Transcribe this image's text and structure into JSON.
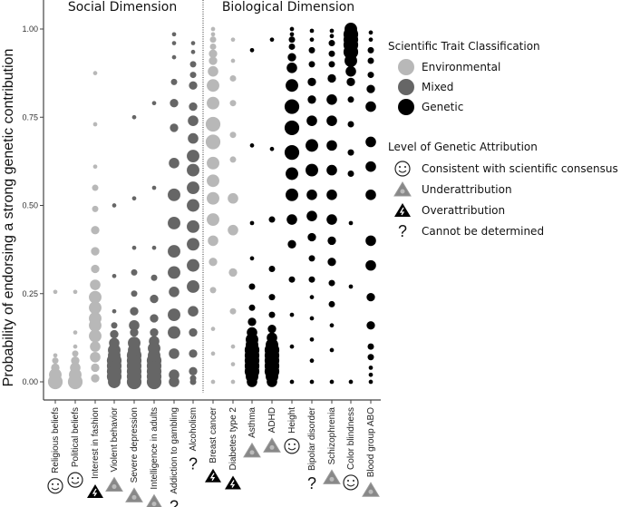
{
  "chart_data": {
    "type": "scatter",
    "subtype": "dot-size plot",
    "ylabel": "Probability of endorsing a strong genetic contribution",
    "ylim": [
      0,
      1
    ],
    "yticks": [
      "0.00",
      "0.25",
      "0.50",
      "0.75",
      "1.00"
    ],
    "yticks_values": [
      0,
      0.25,
      0.5,
      0.75,
      1
    ],
    "dimensions": [
      {
        "label": "Social Dimension",
        "traits": [
          0,
          1,
          2,
          3,
          4,
          5,
          6,
          7
        ]
      },
      {
        "label": "Biological Dimension",
        "traits": [
          8,
          9,
          10,
          11,
          12,
          13,
          14,
          15,
          16
        ]
      }
    ],
    "class_colors": {
      "Environmental": "#b8b8b8",
      "Mixed": "#666666",
      "Genetic": "#000000"
    },
    "legend": {
      "classification_title": "Scientific Trait Classification",
      "classes": [
        "Environmental",
        "Mixed",
        "Genetic"
      ],
      "attribution_title": "Level of Genetic Attribution",
      "attributions": [
        {
          "key": "consensus",
          "label": "Consistent with scientific consensus"
        },
        {
          "key": "under",
          "label": "Underattribution"
        },
        {
          "key": "over",
          "label": "Overattribution"
        },
        {
          "key": "unknown",
          "label": "Cannot be determined"
        }
      ],
      "placement": "right"
    },
    "traits": [
      {
        "name": "Religious beliefs",
        "class": "Environmental",
        "attribution": "consensus",
        "points": [
          [
            0,
            6
          ],
          [
            0.02,
            5
          ],
          [
            0.04,
            3
          ],
          [
            0.06,
            2
          ],
          [
            0.075,
            1
          ],
          [
            0.255,
            1
          ]
        ]
      },
      {
        "name": "Political beliefs",
        "class": "Environmental",
        "attribution": "consensus",
        "points": [
          [
            0,
            6
          ],
          [
            0.02,
            5
          ],
          [
            0.04,
            4
          ],
          [
            0.06,
            3
          ],
          [
            0.08,
            2
          ],
          [
            0.1,
            1
          ],
          [
            0.14,
            1
          ],
          [
            0.255,
            1
          ]
        ]
      },
      {
        "name": "Interest in fashion",
        "class": "Environmental",
        "attribution": "over",
        "points": [
          [
            0.01,
            3
          ],
          [
            0.04,
            3
          ],
          [
            0.07,
            4
          ],
          [
            0.1,
            4
          ],
          [
            0.13,
            5
          ],
          [
            0.16,
            5
          ],
          [
            0.18,
            5
          ],
          [
            0.21,
            5
          ],
          [
            0.24,
            5
          ],
          [
            0.275,
            4
          ],
          [
            0.32,
            3
          ],
          [
            0.37,
            3
          ],
          [
            0.43,
            3
          ],
          [
            0.49,
            2
          ],
          [
            0.55,
            2
          ],
          [
            0.61,
            1
          ],
          [
            0.73,
            1
          ],
          [
            0.875,
            1
          ]
        ]
      },
      {
        "name": "Violent behavior",
        "class": "Mixed",
        "attribution": "under",
        "points": [
          [
            0,
            5
          ],
          [
            0.015,
            6
          ],
          [
            0.03,
            6
          ],
          [
            0.045,
            6
          ],
          [
            0.06,
            6
          ],
          [
            0.075,
            5
          ],
          [
            0.09,
            5
          ],
          [
            0.11,
            4
          ],
          [
            0.135,
            3
          ],
          [
            0.16,
            2
          ],
          [
            0.2,
            1
          ],
          [
            0.3,
            1
          ],
          [
            0.5,
            1
          ]
        ]
      },
      {
        "name": "Severe depression",
        "class": "Mixed",
        "attribution": "under",
        "points": [
          [
            0,
            6
          ],
          [
            0.015,
            6
          ],
          [
            0.03,
            6
          ],
          [
            0.045,
            6
          ],
          [
            0.06,
            6
          ],
          [
            0.075,
            6
          ],
          [
            0.09,
            5
          ],
          [
            0.11,
            5
          ],
          [
            0.14,
            3
          ],
          [
            0.16,
            4
          ],
          [
            0.2,
            3
          ],
          [
            0.25,
            2
          ],
          [
            0.31,
            2
          ],
          [
            0.38,
            1
          ],
          [
            0.52,
            1
          ],
          [
            0.75,
            1
          ]
        ]
      },
      {
        "name": "Intelligence in adults",
        "class": "Mixed",
        "attribution": "under",
        "points": [
          [
            0,
            6
          ],
          [
            0.015,
            6
          ],
          [
            0.03,
            6
          ],
          [
            0.045,
            6
          ],
          [
            0.06,
            6
          ],
          [
            0.075,
            5
          ],
          [
            0.095,
            5
          ],
          [
            0.115,
            4
          ],
          [
            0.14,
            3
          ],
          [
            0.18,
            3
          ],
          [
            0.235,
            3
          ],
          [
            0.295,
            2
          ],
          [
            0.38,
            1
          ],
          [
            0.55,
            1
          ],
          [
            0.79,
            1
          ]
        ]
      },
      {
        "name": "Addiction to gambling",
        "class": "Mixed",
        "attribution": "unknown",
        "points": [
          [
            0,
            4
          ],
          [
            0.02,
            4
          ],
          [
            0.08,
            4
          ],
          [
            0.14,
            5
          ],
          [
            0.19,
            5
          ],
          [
            0.255,
            4
          ],
          [
            0.31,
            5
          ],
          [
            0.37,
            5
          ],
          [
            0.45,
            5
          ],
          [
            0.53,
            5
          ],
          [
            0.62,
            4
          ],
          [
            0.72,
            3
          ],
          [
            0.79,
            3
          ],
          [
            0.85,
            2
          ],
          [
            0.92,
            1
          ],
          [
            0.96,
            1
          ],
          [
            0.985,
            1
          ]
        ]
      },
      {
        "name": "Alcoholism",
        "class": "Mixed",
        "attribution": "unknown",
        "points": [
          [
            0,
            2
          ],
          [
            0.01,
            2
          ],
          [
            0.03,
            3
          ],
          [
            0.08,
            3
          ],
          [
            0.14,
            3
          ],
          [
            0.2,
            4
          ],
          [
            0.27,
            5
          ],
          [
            0.33,
            5
          ],
          [
            0.39,
            5
          ],
          [
            0.44,
            5
          ],
          [
            0.5,
            5
          ],
          [
            0.55,
            5
          ],
          [
            0.6,
            5
          ],
          [
            0.64,
            5
          ],
          [
            0.69,
            4
          ],
          [
            0.74,
            4
          ],
          [
            0.78,
            3
          ],
          [
            0.84,
            3
          ],
          [
            0.87,
            2
          ],
          [
            0.9,
            2
          ],
          [
            0.935,
            1
          ],
          [
            0.96,
            1
          ]
        ]
      },
      {
        "name": "Breast cancer",
        "class": "Environmental",
        "attribution": "over",
        "points": [
          [
            0,
            1
          ],
          [
            0.08,
            1
          ],
          [
            0.15,
            1
          ],
          [
            0.26,
            2
          ],
          [
            0.34,
            3
          ],
          [
            0.4,
            4
          ],
          [
            0.46,
            5
          ],
          [
            0.52,
            5
          ],
          [
            0.57,
            5
          ],
          [
            0.62,
            5
          ],
          [
            0.68,
            6
          ],
          [
            0.73,
            6
          ],
          [
            0.79,
            5
          ],
          [
            0.84,
            5
          ],
          [
            0.88,
            4
          ],
          [
            0.91,
            3
          ],
          [
            0.93,
            3
          ],
          [
            0.95,
            2
          ],
          [
            0.97,
            2
          ],
          [
            0.985,
            1
          ],
          [
            1,
            1
          ]
        ]
      },
      {
        "name": "Diabetes type 2",
        "class": "Environmental",
        "attribution": "over",
        "points": [
          [
            0,
            1
          ],
          [
            0.05,
            1
          ],
          [
            0.1,
            1
          ],
          [
            0.2,
            2
          ],
          [
            0.31,
            3
          ],
          [
            0.43,
            4
          ],
          [
            0.52,
            4
          ],
          [
            0.63,
            2
          ],
          [
            0.7,
            2
          ],
          [
            0.79,
            2
          ],
          [
            0.86,
            2
          ],
          [
            0.91,
            1
          ],
          [
            0.97,
            1
          ]
        ]
      },
      {
        "name": "Asthma",
        "class": "Genetic",
        "attribution": "under",
        "points": [
          [
            0,
            4
          ],
          [
            0.015,
            5
          ],
          [
            0.03,
            6
          ],
          [
            0.045,
            6
          ],
          [
            0.06,
            6
          ],
          [
            0.075,
            6
          ],
          [
            0.09,
            6
          ],
          [
            0.105,
            5
          ],
          [
            0.12,
            5
          ],
          [
            0.14,
            4
          ],
          [
            0.17,
            3
          ],
          [
            0.21,
            2
          ],
          [
            0.27,
            2
          ],
          [
            0.35,
            1
          ],
          [
            0.45,
            1
          ],
          [
            0.67,
            1
          ],
          [
            0.94,
            1
          ]
        ]
      },
      {
        "name": "ADHD",
        "class": "Genetic",
        "attribution": "under",
        "points": [
          [
            0,
            4
          ],
          [
            0.015,
            5
          ],
          [
            0.03,
            6
          ],
          [
            0.045,
            6
          ],
          [
            0.06,
            6
          ],
          [
            0.075,
            6
          ],
          [
            0.09,
            6
          ],
          [
            0.105,
            5
          ],
          [
            0.125,
            4
          ],
          [
            0.15,
            3
          ],
          [
            0.19,
            2
          ],
          [
            0.24,
            2
          ],
          [
            0.32,
            2
          ],
          [
            0.46,
            2
          ],
          [
            0.66,
            1
          ],
          [
            0.97,
            1
          ]
        ]
      },
      {
        "name": "Height",
        "class": "Genetic",
        "attribution": "consensus",
        "points": [
          [
            0,
            1
          ],
          [
            0.1,
            1
          ],
          [
            0.19,
            1
          ],
          [
            0.29,
            2
          ],
          [
            0.39,
            3
          ],
          [
            0.46,
            4
          ],
          [
            0.53,
            5
          ],
          [
            0.59,
            5
          ],
          [
            0.65,
            6
          ],
          [
            0.72,
            6
          ],
          [
            0.78,
            6
          ],
          [
            0.84,
            5
          ],
          [
            0.89,
            4
          ],
          [
            0.92,
            3
          ],
          [
            0.95,
            2
          ],
          [
            0.97,
            2
          ],
          [
            0.985,
            1
          ],
          [
            1,
            1
          ]
        ]
      },
      {
        "name": "Bipolar disorder",
        "class": "Genetic",
        "attribution": "unknown",
        "points": [
          [
            0,
            1
          ],
          [
            0.06,
            1
          ],
          [
            0.12,
            1
          ],
          [
            0.18,
            1
          ],
          [
            0.24,
            1
          ],
          [
            0.29,
            2
          ],
          [
            0.35,
            2
          ],
          [
            0.41,
            3
          ],
          [
            0.47,
            4
          ],
          [
            0.53,
            4
          ],
          [
            0.6,
            5
          ],
          [
            0.67,
            5
          ],
          [
            0.74,
            4
          ],
          [
            0.8,
            3
          ],
          [
            0.85,
            3
          ],
          [
            0.9,
            2
          ],
          [
            0.94,
            2
          ],
          [
            0.97,
            1
          ],
          [
            0.995,
            1
          ]
        ]
      },
      {
        "name": "Schizophrenia",
        "class": "Genetic",
        "attribution": "under",
        "points": [
          [
            0,
            1
          ],
          [
            0.09,
            1
          ],
          [
            0.16,
            1
          ],
          [
            0.22,
            2
          ],
          [
            0.28,
            2
          ],
          [
            0.34,
            3
          ],
          [
            0.4,
            3
          ],
          [
            0.46,
            4
          ],
          [
            0.53,
            4
          ],
          [
            0.6,
            4
          ],
          [
            0.67,
            4
          ],
          [
            0.74,
            4
          ],
          [
            0.8,
            4
          ],
          [
            0.86,
            3
          ],
          [
            0.9,
            2
          ],
          [
            0.93,
            2
          ],
          [
            0.96,
            2
          ],
          [
            0.98,
            1
          ],
          [
            0.995,
            1
          ]
        ]
      },
      {
        "name": "Color blindness",
        "class": "Genetic",
        "attribution": "consensus",
        "points": [
          [
            0,
            1
          ],
          [
            0.27,
            1
          ],
          [
            0.45,
            1
          ],
          [
            0.59,
            2
          ],
          [
            0.65,
            2
          ],
          [
            0.73,
            2
          ],
          [
            0.8,
            2
          ],
          [
            0.85,
            3
          ],
          [
            0.88,
            4
          ],
          [
            0.91,
            5
          ],
          [
            0.935,
            6
          ],
          [
            0.955,
            6
          ],
          [
            0.97,
            6
          ],
          [
            0.985,
            6
          ],
          [
            1,
            5
          ]
        ]
      },
      {
        "name": "Blood group ABO",
        "class": "Genetic",
        "attribution": "under",
        "points": [
          [
            0,
            1
          ],
          [
            0.02,
            1
          ],
          [
            0.04,
            1
          ],
          [
            0.07,
            2
          ],
          [
            0.1,
            2
          ],
          [
            0.16,
            3
          ],
          [
            0.24,
            3
          ],
          [
            0.33,
            4
          ],
          [
            0.4,
            4
          ],
          [
            0.53,
            4
          ],
          [
            0.61,
            4
          ],
          [
            0.68,
            4
          ],
          [
            0.78,
            4
          ],
          [
            0.83,
            3
          ],
          [
            0.87,
            2
          ],
          [
            0.91,
            2
          ],
          [
            0.94,
            2
          ],
          [
            0.97,
            1
          ],
          [
            0.99,
            1
          ]
        ]
      }
    ]
  }
}
